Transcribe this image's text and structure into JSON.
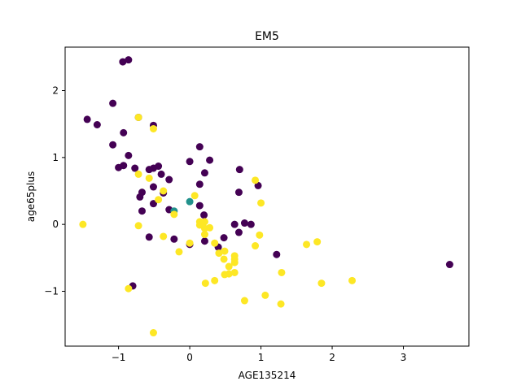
{
  "chart_data": {
    "type": "scatter",
    "title": "EM5",
    "xlabel": "AGE135214",
    "ylabel": "age65plus",
    "xlim": [
      -1.75,
      3.92
    ],
    "ylim": [
      -1.82,
      2.65
    ],
    "xticks": [
      -1,
      0,
      1,
      2,
      3
    ],
    "yticks": [
      -1,
      0,
      1,
      2
    ],
    "grid": false,
    "colors": {
      "purple": "#440154",
      "teal": "#21918c",
      "yellow": "#fde725"
    },
    "series": [
      {
        "color": "#440154",
        "x": [
          -0.94,
          -0.86,
          -0.72,
          -1.08,
          -1.44,
          -1.3,
          -0.93,
          -1.08,
          -0.86,
          -0.77,
          -1.0,
          -0.93,
          -0.51,
          -0.51,
          -0.44,
          -0.57,
          -0.4,
          -0.29,
          -0.37,
          -0.7,
          -0.51,
          -0.67,
          -0.67,
          -0.51,
          -0.29,
          -0.57,
          -0.22,
          -0.8,
          0.14,
          0.28,
          0.0,
          0.14,
          0.21,
          0.7,
          0.96,
          0.14,
          0.69,
          0.2,
          0.63,
          0.77,
          0.86,
          0.69,
          0.48,
          0.4,
          0.21,
          0.0,
          1.22,
          3.65
        ],
        "y": [
          2.43,
          2.46,
          1.6,
          1.81,
          1.57,
          1.49,
          1.37,
          1.19,
          1.03,
          0.84,
          0.85,
          0.88,
          1.48,
          0.84,
          0.87,
          0.82,
          0.75,
          0.67,
          0.47,
          0.41,
          0.56,
          0.48,
          0.2,
          0.31,
          0.22,
          -0.19,
          -0.22,
          -0.92,
          1.16,
          0.96,
          0.94,
          0.6,
          0.77,
          0.82,
          0.58,
          0.28,
          0.48,
          0.14,
          0.0,
          0.02,
          0.0,
          -0.12,
          -0.2,
          -0.34,
          -0.25,
          -0.3,
          -0.45,
          -0.6
        ]
      },
      {
        "color": "#21918c",
        "x": [
          -0.22,
          0.0
        ],
        "y": [
          0.2,
          0.34
        ]
      },
      {
        "color": "#fde725",
        "x": [
          -1.5,
          -0.72,
          -0.51,
          -0.57,
          -0.72,
          -0.37,
          -0.44,
          -0.72,
          -0.22,
          -0.37,
          -0.15,
          -0.86,
          -0.51,
          0.07,
          0.14,
          0.21,
          0.14,
          0.21,
          0.28,
          0.21,
          0.0,
          0.35,
          0.41,
          0.49,
          0.48,
          0.55,
          0.63,
          0.63,
          0.63,
          0.49,
          0.55,
          0.63,
          0.22,
          0.35,
          0.77,
          0.92,
          0.98,
          1.0,
          0.92,
          1.06,
          1.28,
          1.29,
          1.64,
          1.79,
          1.85,
          2.28
        ],
        "y": [
          0.0,
          1.6,
          1.43,
          0.69,
          0.75,
          0.5,
          0.37,
          -0.02,
          0.15,
          -0.18,
          -0.41,
          -0.96,
          -1.62,
          0.43,
          0.04,
          0.04,
          -0.01,
          -0.06,
          -0.05,
          -0.15,
          -0.28,
          -0.28,
          -0.43,
          -0.4,
          -0.52,
          -0.63,
          -0.47,
          -0.52,
          -0.57,
          -0.75,
          -0.74,
          -0.72,
          -0.88,
          -0.84,
          -1.14,
          -0.32,
          -0.16,
          0.32,
          0.66,
          -1.06,
          -1.19,
          -0.72,
          -0.3,
          -0.26,
          -0.88,
          -0.84
        ]
      }
    ]
  }
}
